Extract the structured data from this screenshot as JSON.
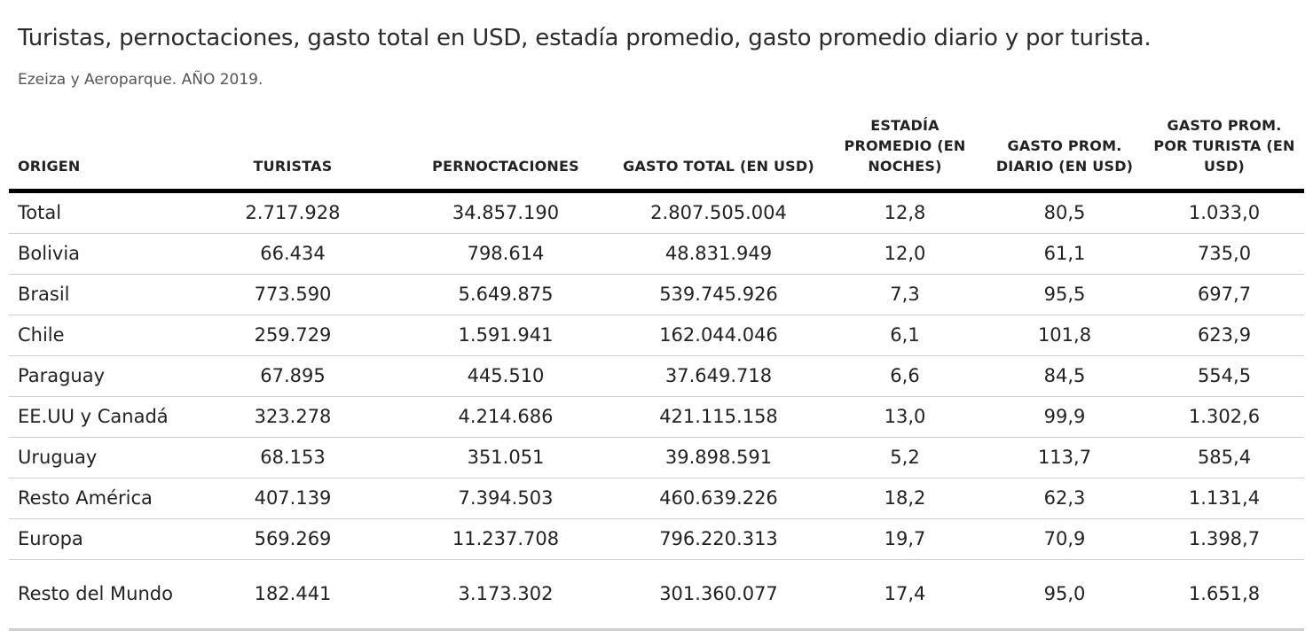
{
  "header": {
    "title": "Turistas, pernoctaciones, gasto total en USD, estadía promedio, gasto promedio diario y por turista.",
    "subtitle": "Ezeiza y Aeroparque. AÑO 2019."
  },
  "chart_data": {
    "type": "table",
    "columns": [
      "ORIGEN",
      "TURISTAS",
      "PERNOCTACIONES",
      "GASTO TOTAL (EN USD)",
      "ESTADÍA PROMEDIO (EN NOCHES)",
      "GASTO PROM. DIARIO (EN USD)",
      "GASTO PROM. POR TURISTA (EN USD)"
    ],
    "rows": [
      [
        "Total",
        "2.717.928",
        "34.857.190",
        "2.807.505.004",
        "12,8",
        "80,5",
        "1.033,0"
      ],
      [
        "Bolivia",
        "66.434",
        "798.614",
        "48.831.949",
        "12,0",
        "61,1",
        "735,0"
      ],
      [
        "Brasil",
        "773.590",
        "5.649.875",
        "539.745.926",
        "7,3",
        "95,5",
        "697,7"
      ],
      [
        "Chile",
        "259.729",
        "1.591.941",
        "162.044.046",
        "6,1",
        "101,8",
        "623,9"
      ],
      [
        "Paraguay",
        "67.895",
        "445.510",
        "37.649.718",
        "6,6",
        "84,5",
        "554,5"
      ],
      [
        "EE.UU y Canadá",
        "323.278",
        "4.214.686",
        "421.115.158",
        "13,0",
        "99,9",
        "1.302,6"
      ],
      [
        "Uruguay",
        "68.153",
        "351.051",
        "39.898.591",
        "5,2",
        "113,7",
        "585,4"
      ],
      [
        "Resto América",
        "407.139",
        "7.394.503",
        "460.639.226",
        "18,2",
        "62,3",
        "1.131,4"
      ],
      [
        "Europa",
        "569.269",
        "11.237.708",
        "796.220.313",
        "19,7",
        "70,9",
        "1.398,7"
      ],
      [
        "Resto del Mundo",
        "182.441",
        "3.173.302",
        "301.360.077",
        "17,4",
        "95,0",
        "1.651,8"
      ]
    ]
  }
}
